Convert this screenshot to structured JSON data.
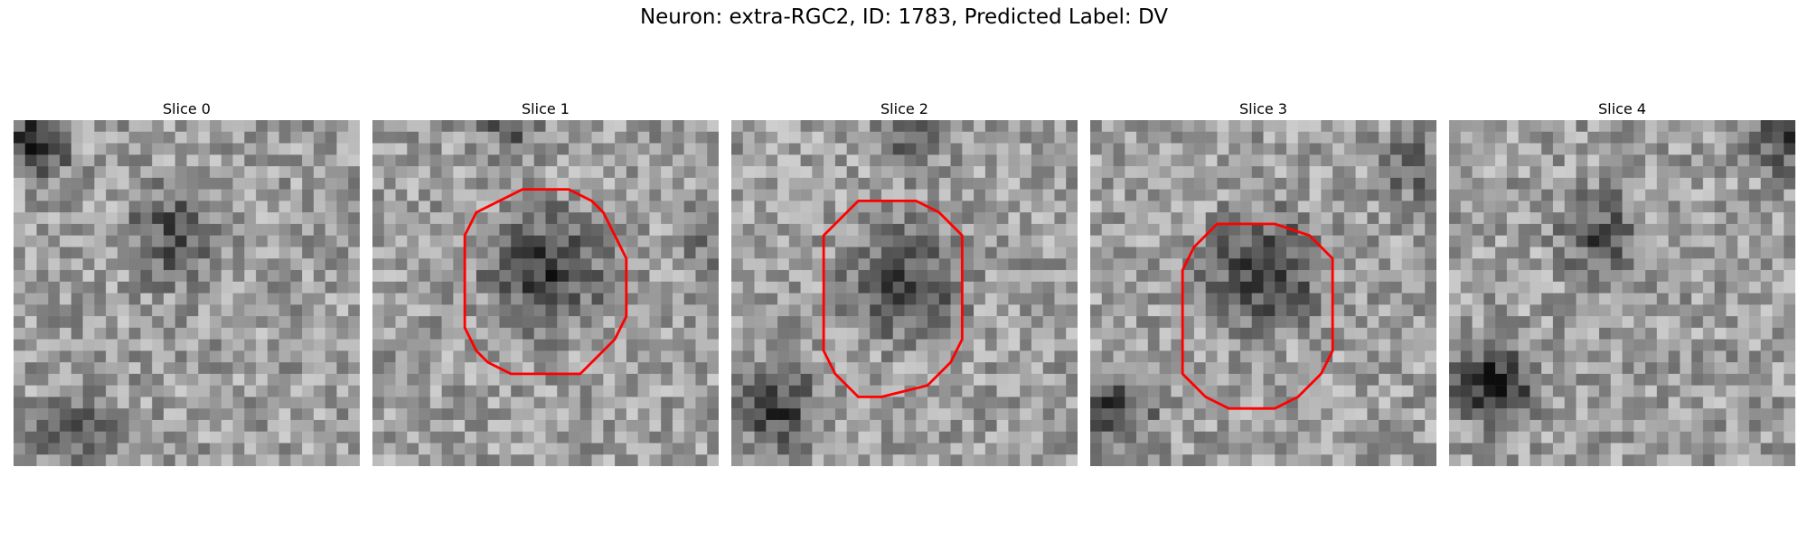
{
  "figure": {
    "title": "Neuron: extra-RGC2, ID: 1783, Predicted Label: DV"
  },
  "panels": [
    {
      "label": "Slice 0",
      "has_contour": false
    },
    {
      "label": "Slice 1",
      "has_contour": true
    },
    {
      "label": "Slice 2",
      "has_contour": true
    },
    {
      "label": "Slice 3",
      "has_contour": true
    },
    {
      "label": "Slice 4",
      "has_contour": false
    }
  ],
  "colors": {
    "contour": "#ff0000",
    "background": "#ffffff"
  }
}
